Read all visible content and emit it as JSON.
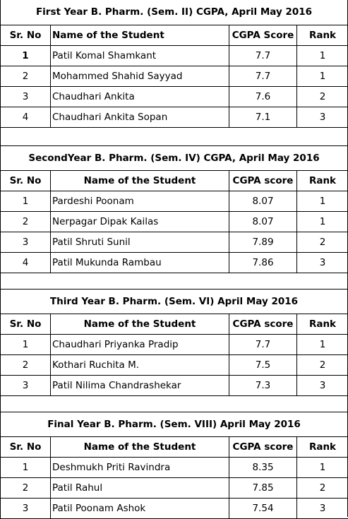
{
  "sections": [
    {
      "title": "First Year B. Pharm. (Sem. II) CGPA, April May 2016",
      "headers": [
        "Sr. No",
        "Name of the Student",
        "CGPA Score",
        "Rank"
      ],
      "rows": [
        {
          "sr": "1",
          "name": "Patil Komal Shamkant",
          "cgpa": "7.7",
          "rank": "1"
        },
        {
          "sr": "2",
          "name": "Mohammed Shahid Sayyad",
          "cgpa": "7.7",
          "rank": "1"
        },
        {
          "sr": "3",
          "name": "Chaudhari Ankita",
          "cgpa": "7.6",
          "rank": "2"
        },
        {
          "sr": "4",
          "name": "Chaudhari Ankita Sopan",
          "cgpa": "7.1",
          "rank": "3"
        }
      ]
    },
    {
      "title": "SecondYear B. Pharm. (Sem. IV) CGPA, April May 2016",
      "headers": [
        "Sr. No",
        "Name of the Student",
        "CGPA score",
        "Rank"
      ],
      "rows": [
        {
          "sr": "1",
          "name": "Pardeshi Poonam",
          "cgpa": "8.07",
          "rank": "1"
        },
        {
          "sr": "2",
          "name": "Nerpagar Dipak Kailas",
          "cgpa": "8.07",
          "rank": "1"
        },
        {
          "sr": "3",
          "name": "Patil Shruti Sunil",
          "cgpa": "7.89",
          "rank": "2"
        },
        {
          "sr": "4",
          "name": "Patil Mukunda Rambau",
          "cgpa": "7.86",
          "rank": "3"
        }
      ]
    },
    {
      "title": "Third Year B. Pharm. (Sem. VI) April May 2016",
      "headers": [
        "Sr. No",
        "Name of the Student",
        "CGPA score",
        "Rank"
      ],
      "rows": [
        {
          "sr": "1",
          "name": "Chaudhari Priyanka Pradip",
          "cgpa": "7.7",
          "rank": "1"
        },
        {
          "sr": "2",
          "name": "Kothari Ruchita M.",
          "cgpa": "7.5",
          "rank": "2"
        },
        {
          "sr": "3",
          "name": "Patil Nilima Chandrashekar",
          "cgpa": "7.3",
          "rank": "3"
        }
      ]
    },
    {
      "title": "Final Year B. Pharm. (Sem. VIII) April May 2016",
      "headers": [
        "Sr. No",
        "Name of the Student",
        "CGPA score",
        "Rank"
      ],
      "rows": [
        {
          "sr": "1",
          "name": "Deshmukh Priti Ravindra",
          "cgpa": "8.35",
          "rank": "1"
        },
        {
          "sr": "2",
          "name": "Patil Rahul",
          "cgpa": "7.85",
          "rank": "2"
        },
        {
          "sr": "3",
          "name": "Patil Poonam Ashok",
          "cgpa": "7.54",
          "rank": "3"
        }
      ]
    }
  ]
}
